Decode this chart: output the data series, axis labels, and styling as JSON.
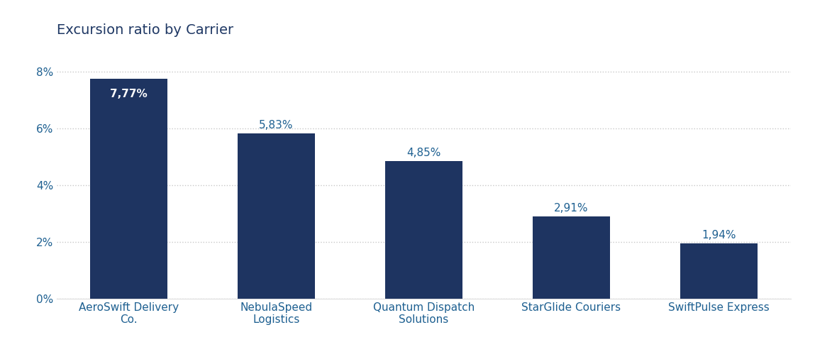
{
  "title": "Excursion ratio by Carrier",
  "title_color": "#1f3864",
  "title_fontsize": 14,
  "categories": [
    "AeroSwift Delivery\nCo.",
    "NebulaSpeed\nLogistics",
    "Quantum Dispatch\nSolutions",
    "StarGlide Couriers",
    "SwiftPulse Express"
  ],
  "values": [
    7.77,
    5.83,
    4.85,
    2.91,
    1.94
  ],
  "bar_labels": [
    "7,77%",
    "5,83%",
    "4,85%",
    "2,91%",
    "1,94%"
  ],
  "bar_color": "#1e3461",
  "label_color_inside": "#ffffff",
  "label_color_outside": "#1e6091",
  "ylim": [
    0,
    9.0
  ],
  "ytick_values": [
    0,
    2,
    4,
    6,
    8
  ],
  "ytick_labels": [
    "0%",
    "2%",
    "4%",
    "6%",
    "8%"
  ],
  "background_color": "#ffffff",
  "grid_color": "#c8c8c8",
  "axis_label_color": "#1e6091",
  "bar_width": 0.52,
  "label_fontsize": 11,
  "tick_fontsize": 11
}
